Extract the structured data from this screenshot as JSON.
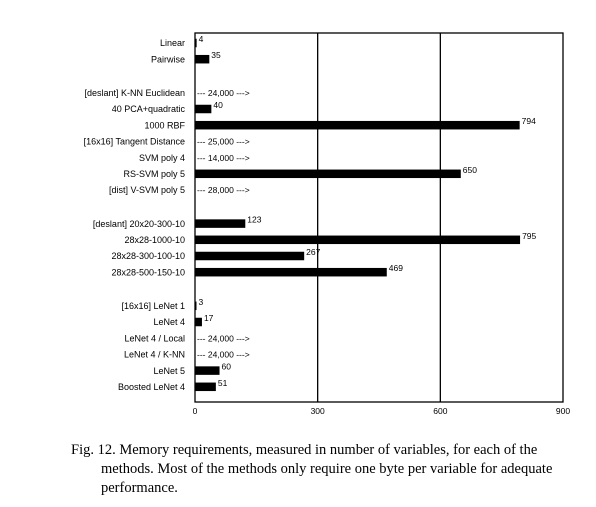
{
  "chart_data": {
    "type": "bar",
    "orientation": "horizontal",
    "xlim": [
      0,
      900
    ],
    "xticks": [
      0,
      300,
      600,
      900
    ],
    "grid": "vertical lines at 300 and 600",
    "groups": [
      [
        {
          "label": "Linear",
          "value": 4,
          "value_label": "4"
        },
        {
          "label": "Pairwise",
          "value": 35,
          "value_label": "35"
        }
      ],
      [
        {
          "label": "[deslant] K-NN Euclidean",
          "value": 24000,
          "value_label": "24,000",
          "offscale": true
        },
        {
          "label": "40 PCA+quadratic",
          "value": 40,
          "value_label": "40"
        },
        {
          "label": "1000 RBF",
          "value": 794,
          "value_label": "794"
        },
        {
          "label": "[16x16] Tangent Distance",
          "value": 25000,
          "value_label": "25,000",
          "offscale": true
        },
        {
          "label": "SVM poly 4",
          "value": 14000,
          "value_label": "14,000",
          "offscale": true
        },
        {
          "label": "RS-SVM poly 5",
          "value": 650,
          "value_label": "650"
        },
        {
          "label": "[dist] V-SVM poly 5",
          "value": 28000,
          "value_label": "28,000",
          "offscale": true
        }
      ],
      [
        {
          "label": "[deslant] 20x20-300-10",
          "value": 123,
          "value_label": "123"
        },
        {
          "label": "28x28-1000-10",
          "value": 795,
          "value_label": "795"
        },
        {
          "label": "28x28-300-100-10",
          "value": 267,
          "value_label": "267"
        },
        {
          "label": "28x28-500-150-10",
          "value": 469,
          "value_label": "469"
        }
      ],
      [
        {
          "label": "[16x16] LeNet 1",
          "value": 3,
          "value_label": "3"
        },
        {
          "label": "LeNet 4",
          "value": 17,
          "value_label": "17"
        },
        {
          "label": "LeNet 4 / Local",
          "value": 24000,
          "value_label": "24,000",
          "offscale": true
        },
        {
          "label": "LeNet 4 / K-NN",
          "value": 24000,
          "value_label": "24,000",
          "offscale": true
        },
        {
          "label": "LeNet 5",
          "value": 60,
          "value_label": "60"
        },
        {
          "label": "Boosted LeNet 4",
          "value": 51,
          "value_label": "51"
        }
      ]
    ],
    "colors": {
      "bar": "#000000"
    }
  },
  "caption": {
    "text": "Fig. 12.  Memory requirements, measured in number of variables, for each of the methods. Most of the methods only require one byte per variable for adequate performance."
  }
}
